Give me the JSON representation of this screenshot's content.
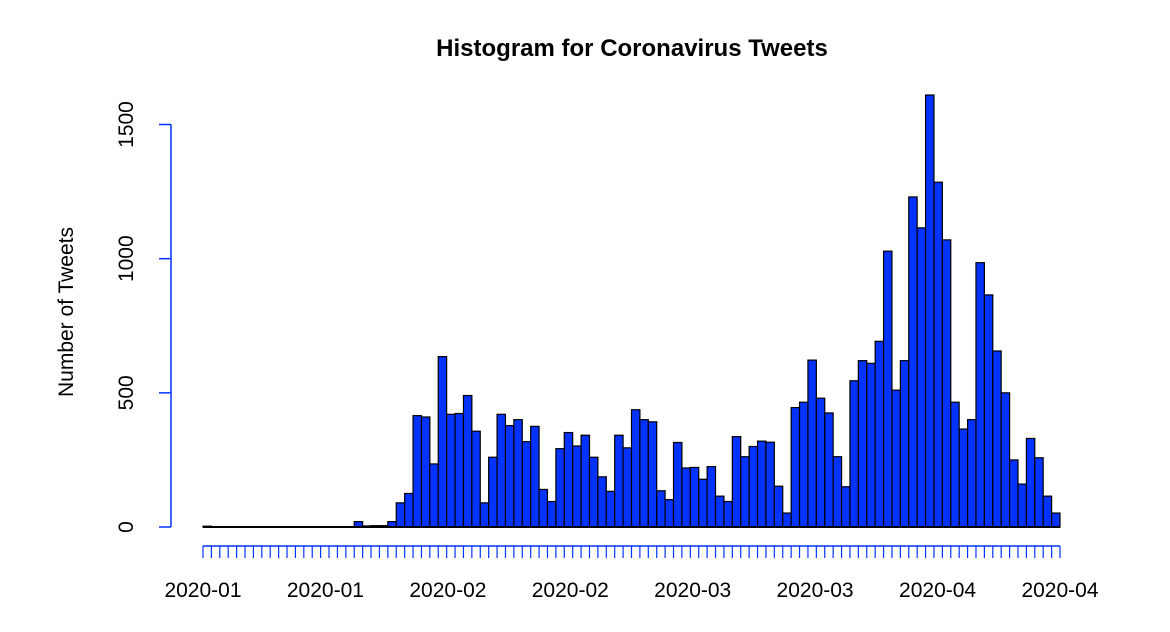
{
  "chart_data": {
    "type": "bar",
    "title": "Histogram for Coronavirus Tweets",
    "xlabel": "",
    "ylabel": "Number of Tweets",
    "ylim": [
      0,
      1610
    ],
    "y_ticks": [
      "0",
      "500",
      "1000",
      "1500"
    ],
    "x_tick_labels": [
      "2020-01",
      "2020-01",
      "2020-02",
      "2020-02",
      "2020-03",
      "2020-03",
      "2020-04",
      "2020-04"
    ],
    "bar_color": "#0433ff",
    "axis_color": "#0433ff",
    "grid": false,
    "values": [
      3,
      1,
      1,
      1,
      1,
      1,
      1,
      1,
      1,
      1,
      1,
      1,
      1,
      1,
      1,
      1,
      1,
      1,
      20,
      4,
      5,
      5,
      20,
      90,
      125,
      415,
      410,
      235,
      635,
      420,
      423,
      490,
      357,
      90,
      260,
      420,
      378,
      400,
      318,
      375,
      140,
      95,
      292,
      352,
      302,
      342,
      260,
      187,
      133,
      342,
      295,
      437,
      400,
      392,
      135,
      102,
      315,
      220,
      222,
      178,
      225,
      115,
      95,
      337,
      262,
      300,
      320,
      316,
      152,
      52,
      445,
      465,
      622,
      480,
      425,
      262,
      150,
      545,
      620,
      610,
      692,
      1028,
      510,
      620,
      1230,
      1115,
      1610,
      1285,
      1070,
      465,
      365,
      400,
      985,
      865,
      656,
      500,
      250,
      160,
      330,
      258,
      115,
      52
    ]
  }
}
